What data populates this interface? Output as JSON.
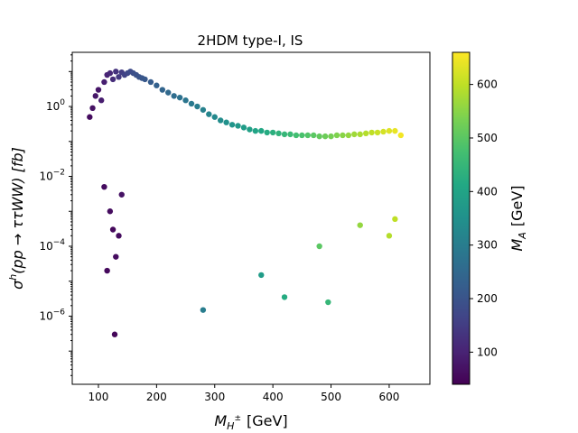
{
  "chart_data": {
    "type": "scatter",
    "title": "2HDM type-I, IS",
    "xlabel_main": "M",
    "xlabel_sub": "H",
    "xlabel_sup": "±",
    "xlabel_unit": "[GeV]",
    "ylabel_sigma": "σ",
    "ylabel_sup": "h",
    "ylabel_body": "(pp → ττWW) [fb]",
    "colorbar_label_main": "M",
    "colorbar_label_sub": "A",
    "colorbar_label_unit": "[GeV]",
    "xlim": [
      55,
      670
    ],
    "ylim_log10": [
      -7.95,
      1.55
    ],
    "yscale": "log",
    "xticks": [
      100,
      200,
      300,
      400,
      500,
      600
    ],
    "xtick_labels": [
      "100",
      "200",
      "300",
      "400",
      "500",
      "600"
    ],
    "yticks_exp": [
      0,
      -2,
      -4,
      -6
    ],
    "ytick_labels": [
      {
        "base": "10",
        "exp": "0"
      },
      {
        "base": "10",
        "exp": "−2"
      },
      {
        "base": "10",
        "exp": "−4"
      },
      {
        "base": "10",
        "exp": "−6"
      }
    ],
    "colorbar_range": [
      40,
      660
    ],
    "colorbar_ticks": [
      100,
      200,
      300,
      400,
      500,
      600
    ],
    "colorbar_tick_labels": [
      "100",
      "200",
      "300",
      "400",
      "500",
      "600"
    ],
    "colormap": "viridis",
    "grid": false,
    "series": [
      {
        "points_description_note": "",
        "points": [
          [
            85,
            0.5,
            60
          ],
          [
            90,
            0.9,
            70
          ],
          [
            95,
            2.0,
            80
          ],
          [
            100,
            3.0,
            75
          ],
          [
            105,
            1.5,
            90
          ],
          [
            110,
            5.0,
            95
          ],
          [
            115,
            8.0,
            100
          ],
          [
            120,
            9.0,
            110
          ],
          [
            125,
            6.0,
            120
          ],
          [
            130,
            10.0,
            130
          ],
          [
            135,
            7.0,
            140
          ],
          [
            140,
            9.5,
            150
          ],
          [
            145,
            8.0,
            160
          ],
          [
            150,
            9.0,
            170
          ],
          [
            155,
            10.0,
            180
          ],
          [
            160,
            9.0,
            190
          ],
          [
            165,
            8.0,
            195
          ],
          [
            170,
            7.0,
            200
          ],
          [
            175,
            6.5,
            205
          ],
          [
            180,
            6.0,
            210
          ],
          [
            190,
            5.0,
            220
          ],
          [
            200,
            4.0,
            230
          ],
          [
            210,
            3.0,
            240
          ],
          [
            220,
            2.5,
            250
          ],
          [
            230,
            2.0,
            260
          ],
          [
            240,
            1.8,
            270
          ],
          [
            250,
            1.5,
            280
          ],
          [
            260,
            1.2,
            290
          ],
          [
            270,
            1.0,
            300
          ],
          [
            280,
            0.8,
            310
          ],
          [
            290,
            0.6,
            320
          ],
          [
            300,
            0.5,
            330
          ],
          [
            310,
            0.4,
            340
          ],
          [
            320,
            0.35,
            350
          ],
          [
            330,
            0.3,
            360
          ],
          [
            340,
            0.28,
            370
          ],
          [
            350,
            0.25,
            380
          ],
          [
            360,
            0.22,
            390
          ],
          [
            370,
            0.2,
            400
          ],
          [
            380,
            0.2,
            410
          ],
          [
            390,
            0.18,
            420
          ],
          [
            400,
            0.18,
            430
          ],
          [
            410,
            0.17,
            440
          ],
          [
            420,
            0.16,
            450
          ],
          [
            430,
            0.16,
            460
          ],
          [
            440,
            0.15,
            470
          ],
          [
            450,
            0.15,
            480
          ],
          [
            460,
            0.15,
            490
          ],
          [
            470,
            0.15,
            500
          ],
          [
            480,
            0.14,
            510
          ],
          [
            490,
            0.14,
            520
          ],
          [
            500,
            0.14,
            530
          ],
          [
            510,
            0.15,
            540
          ],
          [
            520,
            0.15,
            550
          ],
          [
            530,
            0.15,
            560
          ],
          [
            540,
            0.16,
            570
          ],
          [
            550,
            0.16,
            580
          ],
          [
            560,
            0.17,
            590
          ],
          [
            570,
            0.18,
            600
          ],
          [
            580,
            0.18,
            610
          ],
          [
            590,
            0.19,
            620
          ],
          [
            600,
            0.2,
            630
          ],
          [
            610,
            0.2,
            640
          ],
          [
            620,
            0.15,
            650
          ],
          [
            120,
            0.001,
            60
          ],
          [
            125,
            0.0003,
            55
          ],
          [
            130,
            5e-05,
            60
          ],
          [
            128,
            3e-07,
            50
          ],
          [
            115,
            2e-05,
            55
          ],
          [
            135,
            0.0002,
            60
          ],
          [
            140,
            0.003,
            70
          ],
          [
            110,
            0.005,
            60
          ],
          [
            280,
            1.5e-06,
            300
          ],
          [
            380,
            1.5e-05,
            380
          ],
          [
            420,
            3.5e-06,
            420
          ],
          [
            495,
            2.5e-06,
            450
          ],
          [
            610,
            0.0006,
            600
          ],
          [
            600,
            0.0002,
            590
          ],
          [
            550,
            0.0004,
            560
          ],
          [
            480,
            0.0001,
            500
          ]
        ]
      }
    ]
  }
}
